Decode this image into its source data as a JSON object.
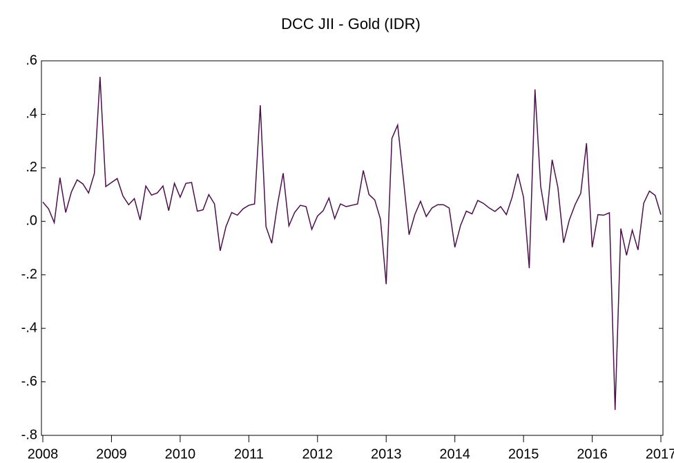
{
  "chart_data": {
    "type": "line",
    "title": "DCC JII - Gold (IDR)",
    "x": [
      2008,
      2008.0833,
      2008.1667,
      2008.25,
      2008.3333,
      2008.4167,
      2008.5,
      2008.5833,
      2008.6667,
      2008.75,
      2008.8333,
      2008.9167,
      2009,
      2009.0833,
      2009.1667,
      2009.25,
      2009.3333,
      2009.4167,
      2009.5,
      2009.5833,
      2009.6667,
      2009.75,
      2009.8333,
      2009.9167,
      2010,
      2010.0833,
      2010.1667,
      2010.25,
      2010.3333,
      2010.4167,
      2010.5,
      2010.5833,
      2010.6667,
      2010.75,
      2010.8333,
      2010.9167,
      2011,
      2011.0833,
      2011.1667,
      2011.25,
      2011.3333,
      2011.4167,
      2011.5,
      2011.5833,
      2011.6667,
      2011.75,
      2011.8333,
      2011.9167,
      2012,
      2012.0833,
      2012.1667,
      2012.25,
      2012.3333,
      2012.4167,
      2012.5,
      2012.5833,
      2012.6667,
      2012.75,
      2012.8333,
      2012.9167,
      2013,
      2013.0833,
      2013.1667,
      2013.25,
      2013.3333,
      2013.4167,
      2013.5,
      2013.5833,
      2013.6667,
      2013.75,
      2013.8333,
      2013.9167,
      2014,
      2014.0833,
      2014.1667,
      2014.25,
      2014.3333,
      2014.4167,
      2014.5,
      2014.5833,
      2014.6667,
      2014.75,
      2014.8333,
      2014.9167,
      2015,
      2015.0833,
      2015.1667,
      2015.25,
      2015.3333,
      2015.4167,
      2015.5,
      2015.5833,
      2015.6667,
      2015.75,
      2015.8333,
      2015.9167,
      2016,
      2016.0833,
      2016.1667,
      2016.25,
      2016.3333,
      2016.4167,
      2016.5,
      2016.5833,
      2016.6667,
      2016.75,
      2016.8333,
      2016.9167,
      2017
    ],
    "series": [
      {
        "color": "#4b0f4b",
        "values": [
          0.072,
          0.047,
          -0.005,
          0.163,
          0.033,
          0.11,
          0.155,
          0.14,
          0.106,
          0.178,
          0.54,
          0.13,
          0.145,
          0.16,
          0.095,
          0.062,
          0.085,
          0.005,
          0.132,
          0.098,
          0.106,
          0.132,
          0.04,
          0.142,
          0.09,
          0.142,
          0.145,
          0.038,
          0.043,
          0.1,
          0.065,
          -0.11,
          -0.02,
          0.033,
          0.023,
          0.047,
          0.06,
          0.065,
          0.434,
          -0.02,
          -0.082,
          0.062,
          0.18,
          -0.017,
          0.033,
          0.06,
          0.055,
          -0.03,
          0.02,
          0.04,
          0.087,
          0.01,
          0.065,
          0.055,
          0.06,
          0.065,
          0.19,
          0.1,
          0.08,
          0.008,
          -0.235,
          0.31,
          0.36,
          0.16,
          -0.05,
          0.025,
          0.075,
          0.018,
          0.05,
          0.062,
          0.062,
          0.05,
          -0.097,
          -0.015,
          0.038,
          0.028,
          0.078,
          0.067,
          0.05,
          0.037,
          0.055,
          0.025,
          0.09,
          0.178,
          0.09,
          -0.175,
          0.493,
          0.13,
          0.003,
          0.23,
          0.127,
          -0.08,
          0.005,
          0.062,
          0.105,
          0.292,
          -0.097,
          0.025,
          0.023,
          0.032,
          -0.705,
          -0.027,
          -0.127,
          -0.033,
          -0.107,
          0.068,
          0.113,
          0.097,
          0.025
        ]
      }
    ],
    "xlim": [
      2007.98,
      2017.03
    ],
    "xticks": [
      2008,
      2009,
      2010,
      2011,
      2012,
      2013,
      2014,
      2015,
      2016,
      2017
    ],
    "ylim": [
      -0.8,
      0.6
    ],
    "yticks": [
      {
        "value": 0.6,
        "label": ".6"
      },
      {
        "value": 0.4,
        "label": ".4"
      },
      {
        "value": 0.2,
        "label": ".2"
      },
      {
        "value": 0,
        "label": ".0"
      },
      {
        "value": -0.2,
        "label": "-.2"
      },
      {
        "value": -0.4,
        "label": "-.4"
      },
      {
        "value": -0.6,
        "label": "-.6"
      },
      {
        "value": -0.8,
        "label": "-.8"
      }
    ]
  }
}
